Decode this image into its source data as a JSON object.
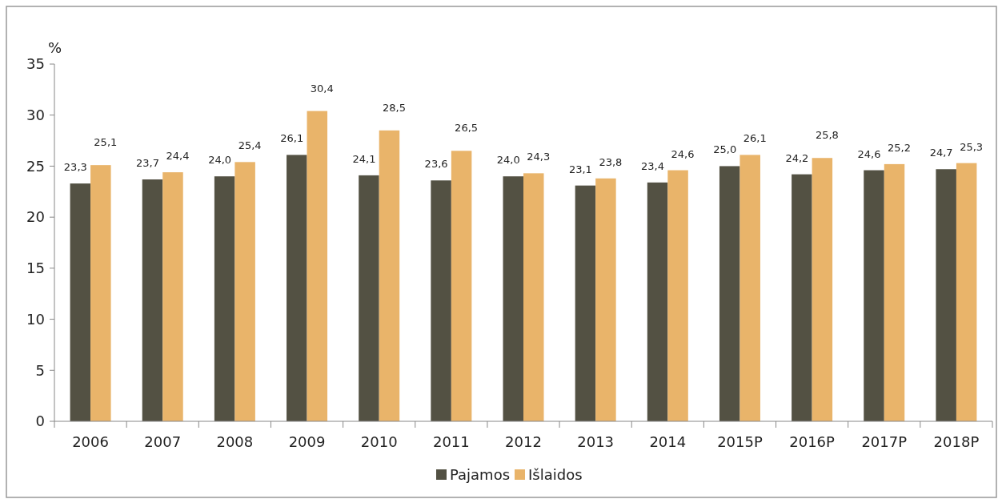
{
  "chart_data": {
    "type": "bar",
    "ylabel": "%",
    "categories": [
      "2006",
      "2007",
      "2008",
      "2009",
      "2010",
      "2011",
      "2012",
      "2013",
      "2014",
      "2015P",
      "2016P",
      "2017P",
      "2018P"
    ],
    "series": [
      {
        "name": "Pajamos",
        "color": "#535143",
        "values": [
          23.3,
          23.7,
          24.0,
          26.1,
          24.1,
          23.6,
          24.0,
          23.1,
          23.4,
          25.0,
          24.2,
          24.6,
          24.7
        ],
        "value_labels": [
          "23,3",
          "23,7",
          "24,0",
          "26,1",
          "24,1",
          "23,6",
          "24,0",
          "23,1",
          "23,4",
          "25,0",
          "24,2",
          "24,6",
          "24,7"
        ]
      },
      {
        "name": "Išlaidos",
        "color": "#e9b46a",
        "values": [
          25.1,
          24.4,
          25.4,
          30.4,
          28.5,
          26.5,
          24.3,
          23.8,
          24.6,
          26.1,
          25.8,
          25.2,
          25.3
        ],
        "value_labels": [
          "25,1",
          "24,4",
          "25,4",
          "30,4",
          "28,5",
          "26,5",
          "24,3",
          "23,8",
          "24,6",
          "26,1",
          "25,8",
          "25,2",
          "25,3"
        ]
      }
    ],
    "ylim": [
      0,
      35
    ],
    "yticks": [
      0,
      5,
      10,
      15,
      20,
      25,
      30,
      35
    ],
    "grid": false,
    "legend": "bottom"
  }
}
